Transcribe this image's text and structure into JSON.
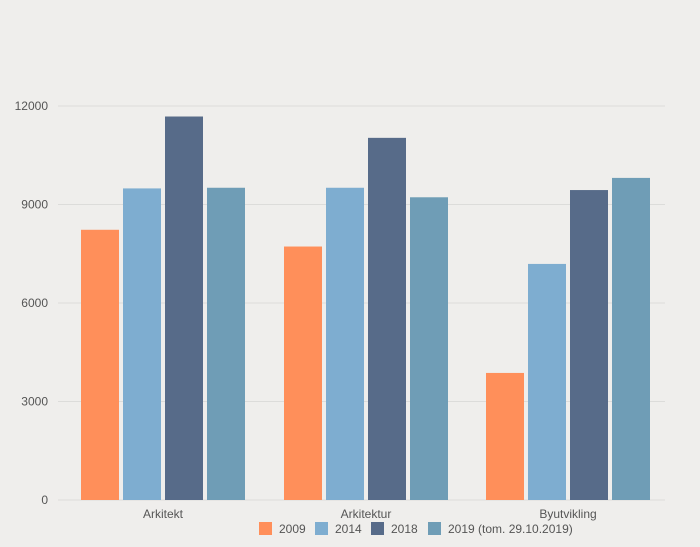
{
  "chart_data": {
    "type": "bar",
    "categories": [
      "Arkitekt",
      "Arkitektur",
      "Byutvikling"
    ],
    "series": [
      {
        "name": "2009",
        "values": [
          8230,
          7720,
          3870
        ],
        "color": "#ff8f5a"
      },
      {
        "name": "2014",
        "values": [
          9490,
          9510,
          7190
        ],
        "color": "#7eadd0"
      },
      {
        "name": "2018",
        "values": [
          11680,
          11030,
          9440
        ],
        "color": "#576b89"
      },
      {
        "name": "2019 (tom. 29.10.2019)",
        "values": [
          9510,
          9220,
          9810
        ],
        "color": "#6f9db6"
      }
    ],
    "yticks": [
      "0",
      "3000",
      "6000",
      "9000",
      "12000"
    ],
    "ylim": [
      0,
      12000
    ],
    "grid": true,
    "legend_position": "bottom"
  }
}
